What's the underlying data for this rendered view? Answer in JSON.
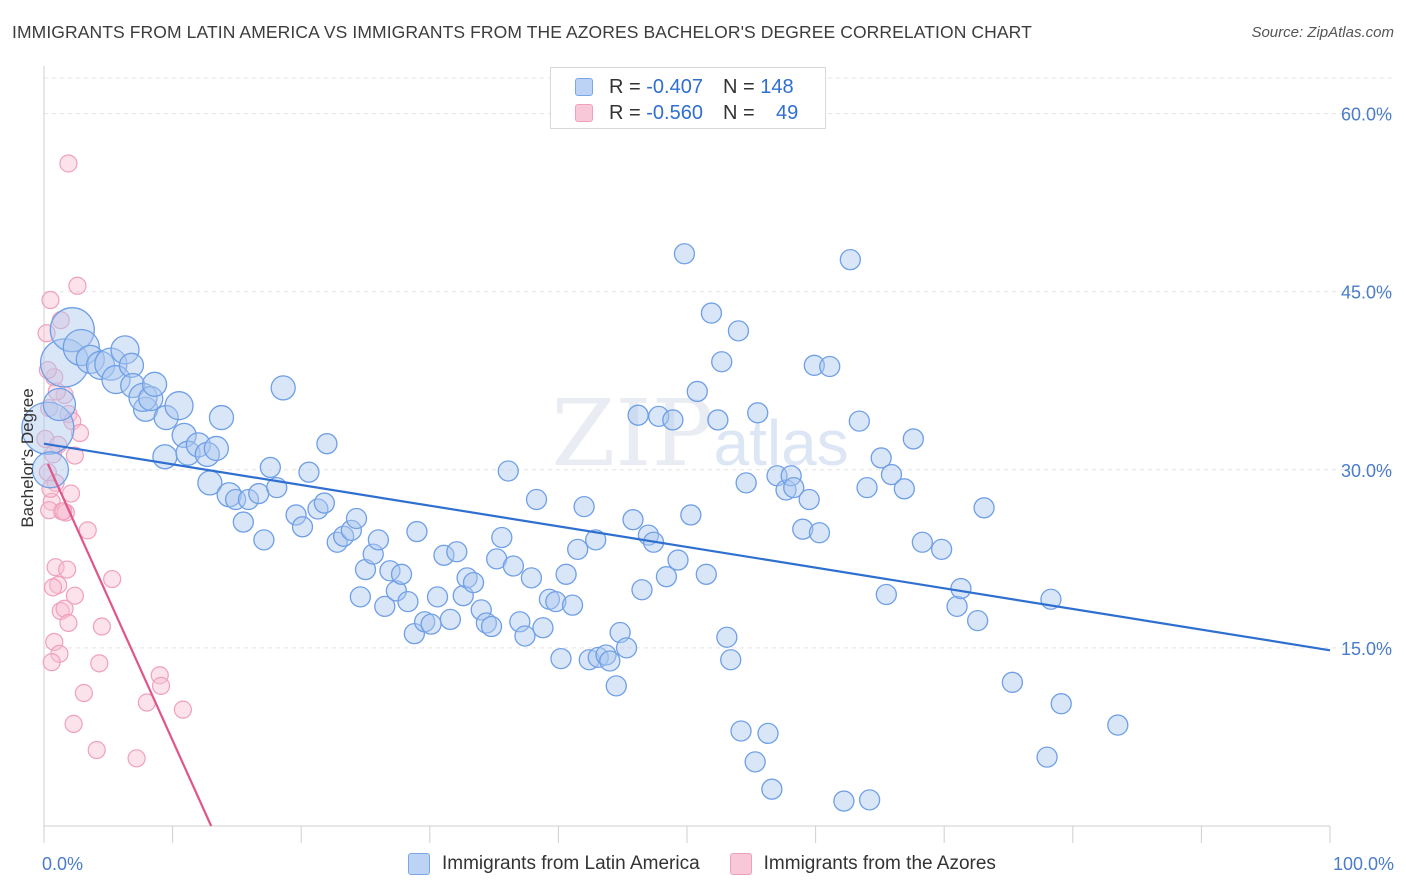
{
  "title": "IMMIGRANTS FROM LATIN AMERICA VS IMMIGRANTS FROM THE AZORES BACHELOR'S DEGREE CORRELATION CHART",
  "source": "Source: ZipAtlas.com",
  "watermark": "ZIPatlas",
  "stats": [
    {
      "r_label": "R =",
      "r_value": "-0.407",
      "n_label": "N =",
      "n_value": "148",
      "color": "#7aa7e8"
    },
    {
      "r_label": "R =",
      "r_value": "-0.560",
      "n_label": "N =",
      "n_value": "49",
      "color": "#f0a0bb"
    }
  ],
  "legend": [
    {
      "label": "Immigrants from Latin America",
      "color": "#7aa7e8"
    },
    {
      "label": "Immigrants from the Azores",
      "color": "#f0a0bb"
    }
  ],
  "chart_data": {
    "type": "scatter",
    "xlabel": "",
    "ylabel": "Bachelor's Degree",
    "xlim": [
      0,
      100
    ],
    "ylim": [
      0,
      63
    ],
    "x_tick_labels": [
      "0.0%",
      "100.0%"
    ],
    "y_ticks": [
      15,
      30,
      45,
      60
    ],
    "y_tick_labels": [
      "15.0%",
      "30.0%",
      "45.0%",
      "60.0%"
    ],
    "grid": true,
    "series": [
      {
        "name": "Immigrants from Latin America",
        "color": "#6f9fe6",
        "trend": {
          "x": [
            0,
            100
          ],
          "y": [
            32.2,
            14.8
          ],
          "color": "#2f6fd0"
        },
        "points": [
          [
            0.3,
            33.5
          ],
          [
            0.5,
            30.0
          ],
          [
            1.2,
            35.5
          ],
          [
            1.6,
            39.0
          ],
          [
            2.2,
            41.8
          ],
          [
            2.9,
            40.3
          ],
          [
            3.6,
            39.3
          ],
          [
            4.4,
            38.8
          ],
          [
            5.2,
            38.9
          ],
          [
            5.6,
            37.6
          ],
          [
            6.3,
            40.1
          ],
          [
            6.8,
            38.8
          ],
          [
            6.9,
            37.1
          ],
          [
            7.9,
            35.1
          ],
          [
            7.7,
            36.1
          ],
          [
            8.3,
            36.0
          ],
          [
            8.6,
            37.2
          ],
          [
            9.5,
            34.4
          ],
          [
            9.4,
            31.1
          ],
          [
            10.5,
            35.4
          ],
          [
            10.9,
            32.9
          ],
          [
            11.2,
            31.4
          ],
          [
            12.0,
            32.1
          ],
          [
            12.7,
            31.3
          ],
          [
            13.4,
            31.8
          ],
          [
            12.9,
            28.9
          ],
          [
            13.8,
            34.4
          ],
          [
            14.4,
            27.9
          ],
          [
            14.9,
            27.5
          ],
          [
            15.5,
            25.6
          ],
          [
            15.9,
            27.5
          ],
          [
            16.7,
            28.0
          ],
          [
            17.1,
            24.1
          ],
          [
            17.6,
            30.2
          ],
          [
            18.1,
            28.5
          ],
          [
            18.6,
            36.9
          ],
          [
            19.6,
            26.2
          ],
          [
            20.1,
            25.2
          ],
          [
            20.6,
            29.8
          ],
          [
            21.3,
            26.7
          ],
          [
            21.8,
            27.2
          ],
          [
            22.0,
            32.2
          ],
          [
            22.8,
            23.9
          ],
          [
            23.3,
            24.4
          ],
          [
            23.9,
            24.9
          ],
          [
            24.3,
            25.9
          ],
          [
            24.6,
            19.3
          ],
          [
            25.0,
            21.6
          ],
          [
            25.6,
            22.9
          ],
          [
            26.0,
            24.1
          ],
          [
            26.5,
            18.5
          ],
          [
            26.9,
            21.5
          ],
          [
            27.4,
            19.8
          ],
          [
            27.8,
            21.2
          ],
          [
            28.3,
            18.9
          ],
          [
            28.8,
            16.2
          ],
          [
            29.0,
            24.8
          ],
          [
            29.6,
            17.2
          ],
          [
            30.1,
            17.0
          ],
          [
            30.6,
            19.3
          ],
          [
            31.1,
            22.8
          ],
          [
            31.6,
            17.4
          ],
          [
            32.1,
            23.1
          ],
          [
            32.6,
            19.4
          ],
          [
            32.9,
            20.9
          ],
          [
            33.4,
            20.5
          ],
          [
            34.0,
            18.2
          ],
          [
            34.4,
            17.1
          ],
          [
            34.8,
            16.8
          ],
          [
            35.2,
            22.5
          ],
          [
            35.6,
            24.3
          ],
          [
            36.1,
            29.9
          ],
          [
            36.5,
            21.9
          ],
          [
            37.0,
            17.2
          ],
          [
            37.4,
            16.0
          ],
          [
            37.9,
            20.9
          ],
          [
            38.3,
            27.5
          ],
          [
            38.8,
            16.7
          ],
          [
            39.3,
            19.1
          ],
          [
            39.8,
            18.9
          ],
          [
            40.2,
            14.1
          ],
          [
            40.6,
            21.2
          ],
          [
            41.1,
            18.6
          ],
          [
            41.5,
            23.3
          ],
          [
            42.0,
            26.9
          ],
          [
            42.4,
            14.0
          ],
          [
            42.9,
            24.1
          ],
          [
            43.1,
            14.2
          ],
          [
            43.7,
            14.4
          ],
          [
            44.0,
            13.9
          ],
          [
            44.5,
            11.8
          ],
          [
            44.8,
            16.3
          ],
          [
            45.3,
            15.0
          ],
          [
            45.8,
            25.8
          ],
          [
            46.2,
            34.6
          ],
          [
            46.5,
            19.9
          ],
          [
            47.0,
            24.5
          ],
          [
            47.4,
            23.9
          ],
          [
            47.8,
            34.5
          ],
          [
            48.4,
            21.0
          ],
          [
            48.9,
            34.2
          ],
          [
            49.3,
            22.4
          ],
          [
            49.8,
            48.2
          ],
          [
            50.3,
            26.2
          ],
          [
            50.8,
            36.6
          ],
          [
            51.5,
            21.2
          ],
          [
            51.9,
            43.2
          ],
          [
            52.4,
            34.2
          ],
          [
            52.7,
            39.1
          ],
          [
            53.1,
            15.9
          ],
          [
            53.4,
            14.0
          ],
          [
            54.0,
            41.7
          ],
          [
            54.2,
            8.0
          ],
          [
            54.6,
            28.9
          ],
          [
            55.5,
            34.8
          ],
          [
            55.3,
            5.4
          ],
          [
            56.3,
            7.8
          ],
          [
            56.6,
            3.1
          ],
          [
            57.0,
            29.5
          ],
          [
            57.7,
            28.3
          ],
          [
            58.1,
            29.5
          ],
          [
            58.3,
            28.5
          ],
          [
            59.0,
            25.0
          ],
          [
            59.5,
            27.5
          ],
          [
            59.9,
            38.8
          ],
          [
            60.3,
            24.7
          ],
          [
            61.1,
            38.7
          ],
          [
            62.2,
            2.1
          ],
          [
            62.7,
            47.7
          ],
          [
            63.4,
            34.1
          ],
          [
            64.0,
            28.5
          ],
          [
            64.2,
            2.2
          ],
          [
            65.1,
            31.0
          ],
          [
            65.5,
            19.5
          ],
          [
            65.9,
            29.6
          ],
          [
            66.9,
            28.4
          ],
          [
            67.6,
            32.6
          ],
          [
            68.3,
            23.9
          ],
          [
            69.8,
            23.3
          ],
          [
            71.0,
            18.5
          ],
          [
            71.3,
            20.0
          ],
          [
            73.1,
            26.8
          ],
          [
            72.6,
            17.3
          ],
          [
            75.3,
            12.1
          ],
          [
            78.0,
            5.8
          ],
          [
            78.3,
            19.1
          ],
          [
            79.1,
            10.3
          ],
          [
            83.5,
            8.5
          ]
        ],
        "sizes": [
          26,
          18,
          16,
          24,
          22,
          18,
          14,
          14,
          16,
          14,
          14,
          12,
          12,
          12,
          14,
          12,
          12,
          12,
          12,
          14,
          12,
          12,
          12,
          12,
          12,
          12,
          12,
          12,
          10,
          10,
          10,
          10,
          10,
          10,
          10,
          12,
          10,
          10,
          10,
          10,
          10,
          10,
          10,
          10,
          10,
          10,
          10,
          10,
          10,
          10,
          10,
          10,
          10,
          10,
          10,
          10,
          10,
          10,
          10,
          10,
          10,
          10,
          10,
          10,
          10,
          10,
          10,
          10,
          10,
          10,
          10,
          10,
          10,
          10,
          10,
          10,
          10,
          10,
          10,
          10,
          10,
          10,
          10,
          10,
          10,
          10,
          10,
          10,
          10,
          10,
          10,
          10,
          10,
          10,
          10,
          10,
          10,
          10,
          10,
          10,
          10,
          10,
          10,
          10,
          10,
          10,
          10,
          10,
          10,
          10,
          10,
          10,
          10,
          10,
          10,
          10,
          10,
          10,
          10,
          10,
          10,
          10,
          10,
          10,
          10,
          10,
          10,
          10,
          10,
          10,
          10,
          10,
          10,
          10,
          10,
          10,
          10,
          10,
          10,
          10,
          10,
          10,
          10,
          10,
          10,
          10,
          10,
          10,
          10,
          10,
          10,
          10,
          10,
          10,
          10,
          10,
          10,
          10,
          10,
          10,
          10,
          10,
          10,
          10,
          10,
          10,
          10,
          10,
          10,
          10
        ]
      },
      {
        "name": "Immigrants from the Azores",
        "color": "#f08ab0",
        "trend": {
          "x": [
            0.3,
            13.0
          ],
          "y": [
            30.5,
            0.0
          ],
          "color": "#e0558a"
        },
        "points": [
          [
            1.9,
            55.8
          ],
          [
            0.5,
            44.3
          ],
          [
            2.6,
            45.5
          ],
          [
            1.3,
            42.6
          ],
          [
            0.2,
            41.5
          ],
          [
            0.8,
            37.8
          ],
          [
            1.6,
            36.3
          ],
          [
            0.4,
            35.2
          ],
          [
            1.9,
            34.7
          ],
          [
            2.2,
            34.1
          ],
          [
            0.1,
            32.6
          ],
          [
            2.8,
            33.1
          ],
          [
            1.1,
            32.1
          ],
          [
            0.7,
            31.3
          ],
          [
            2.4,
            31.2
          ],
          [
            0.3,
            29.8
          ],
          [
            0.9,
            28.9
          ],
          [
            2.1,
            28.0
          ],
          [
            0.6,
            27.3
          ],
          [
            1.4,
            26.5
          ],
          [
            1.7,
            26.4
          ],
          [
            0.4,
            26.6
          ],
          [
            3.4,
            24.9
          ],
          [
            0.9,
            21.8
          ],
          [
            1.8,
            21.6
          ],
          [
            1.1,
            20.3
          ],
          [
            0.7,
            20.1
          ],
          [
            5.3,
            20.8
          ],
          [
            2.4,
            19.4
          ],
          [
            1.3,
            18.1
          ],
          [
            1.6,
            18.3
          ],
          [
            1.9,
            17.1
          ],
          [
            4.5,
            16.8
          ],
          [
            0.8,
            15.5
          ],
          [
            1.2,
            14.5
          ],
          [
            0.6,
            13.8
          ],
          [
            4.3,
            13.7
          ],
          [
            9.0,
            12.7
          ],
          [
            9.1,
            11.8
          ],
          [
            3.1,
            11.2
          ],
          [
            8.0,
            10.4
          ],
          [
            10.8,
            9.8
          ],
          [
            2.3,
            8.6
          ],
          [
            4.1,
            6.4
          ],
          [
            7.2,
            5.7
          ],
          [
            0.5,
            28.4
          ],
          [
            1.0,
            36.6
          ],
          [
            0.3,
            38.4
          ],
          [
            1.5,
            26.5
          ]
        ]
      }
    ]
  }
}
